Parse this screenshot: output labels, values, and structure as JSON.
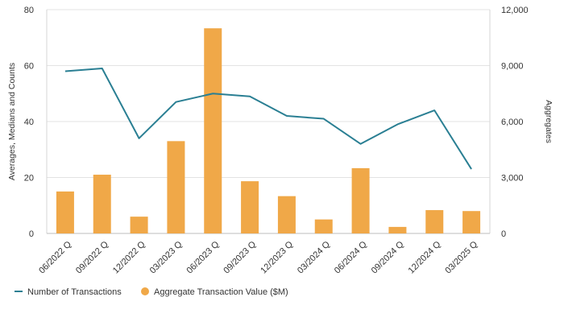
{
  "chart_data": {
    "type": "bar+line",
    "categories": [
      "06/2022 Q",
      "09/2022 Q",
      "12/2022 Q",
      "03/2023 Q",
      "06/2023 Q",
      "09/2023 Q",
      "12/2023 Q",
      "03/2024 Q",
      "06/2024 Q",
      "09/2024 Q",
      "12/2024 Q",
      "03/2025 Q"
    ],
    "series": [
      {
        "name": "Aggregate Transaction Value ($M)",
        "type": "bar",
        "axis": "right",
        "color": "#F0A848",
        "values": [
          2250,
          3150,
          900,
          4950,
          11000,
          2800,
          2000,
          750,
          3500,
          350,
          1250,
          1200
        ]
      },
      {
        "name": "Number of Transactions",
        "type": "line",
        "axis": "left",
        "color": "#2A7F93",
        "values": [
          58,
          59,
          34,
          47,
          50,
          49,
          42,
          41,
          32,
          39,
          44,
          23
        ]
      }
    ],
    "y_left": {
      "label": "Averages, Medians and Counts",
      "min": 0,
      "max": 80,
      "ticks": [
        0,
        20,
        40,
        60,
        80
      ],
      "tick_labels": [
        "0",
        "20",
        "40",
        "60",
        "80"
      ]
    },
    "y_right": {
      "label": "Aggregates",
      "min": 0,
      "max": 12000,
      "ticks": [
        0,
        3000,
        6000,
        9000,
        12000
      ],
      "tick_labels": [
        "0",
        "3,000",
        "6,000",
        "9,000",
        "12,000"
      ]
    },
    "legend": {
      "position": "bottom-left",
      "items": [
        {
          "label": "Number of Transactions",
          "marker": "line",
          "color": "#2A7F93"
        },
        {
          "label": "Aggregate Transaction Value ($M)",
          "marker": "circle",
          "color": "#F0A848"
        }
      ]
    },
    "grid": true
  }
}
